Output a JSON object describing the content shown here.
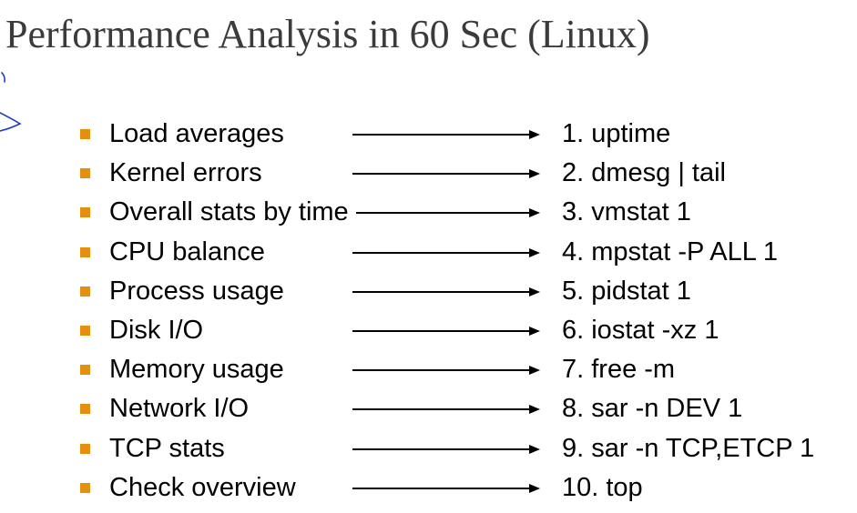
{
  "title": "Performance Analysis in 60 Sec (Linux)",
  "colors": {
    "bullet": "#E4900E",
    "title_text": "#3b3b3b",
    "pen_annotation": "#1F3FB5"
  },
  "items": [
    {
      "label": "Load averages",
      "command": "1. uptime"
    },
    {
      "label": "Kernel errors",
      "command": "2. dmesg | tail"
    },
    {
      "label": "Overall stats by time",
      "command": "3. vmstat 1"
    },
    {
      "label": "CPU balance",
      "command": "4. mpstat -P ALL 1"
    },
    {
      "label": "Process usage",
      "command": "5. pidstat 1"
    },
    {
      "label": "Disk I/O",
      "command": "6. iostat -xz 1"
    },
    {
      "label": "Memory usage",
      "command": "7. free -m"
    },
    {
      "label": "Network I/O",
      "command": "8. sar -n DEV 1"
    },
    {
      "label": "TCP stats",
      "command": "9. sar -n TCP,ETCP 1"
    },
    {
      "label": "Check overview",
      "command": "10. top"
    }
  ]
}
